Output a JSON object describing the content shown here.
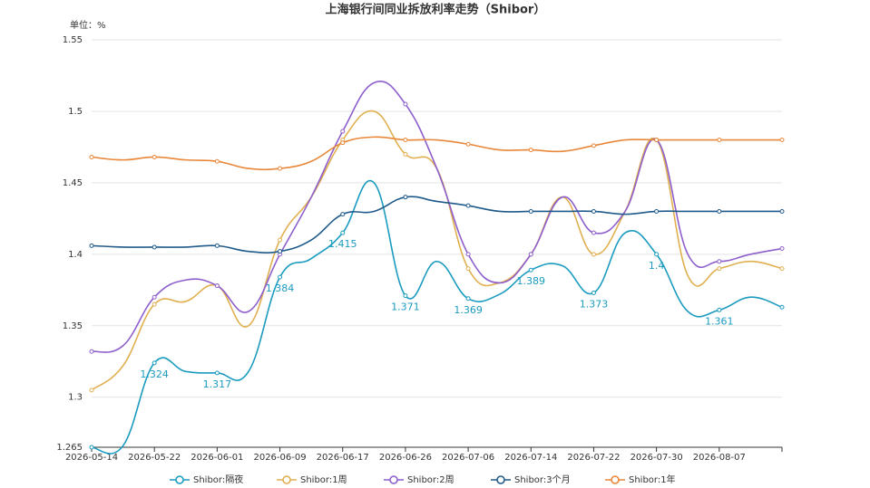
{
  "chart_data": {
    "type": "line",
    "title": "上海银行间同业拆放利率走势（Shibor）",
    "y_label": "单位：%",
    "categories": [
      "2026-05-14",
      null,
      "2026-05-22",
      null,
      "2026-06-01",
      null,
      "2026-06-09",
      null,
      "2026-06-17",
      null,
      "2026-06-26",
      null,
      "2026-07-06",
      null,
      "2026-07-14",
      null,
      "2026-07-22",
      null,
      "2026-07-30",
      null,
      "2026-08-07",
      null,
      null
    ],
    "ylim": [
      1.265,
      1.55
    ],
    "yticks": [
      1.265,
      1.3,
      1.35,
      1.4,
      1.45,
      1.5,
      1.55
    ],
    "grid": true,
    "legend": "bottom",
    "series": [
      {
        "name": "Shibor:隔夜",
        "color": "#1a9bbf",
        "values": [
          1.265,
          1.266,
          1.324,
          1.318,
          1.317,
          1.318,
          1.384,
          1.397,
          1.415,
          1.45,
          1.371,
          1.395,
          1.369,
          1.372,
          1.389,
          1.392,
          1.373,
          1.415,
          1.4,
          1.36,
          1.361,
          1.37,
          1.363
        ],
        "value_labels": [
          null,
          null,
          "1.324",
          null,
          "1.317",
          null,
          "1.384",
          null,
          "1.415",
          null,
          "1.371",
          null,
          "1.369",
          null,
          "1.389",
          null,
          "1.373",
          null,
          "1.4",
          null,
          "1.361",
          null,
          null
        ]
      },
      {
        "name": "Shibor:1周",
        "color": "#e0b050",
        "values": [
          1.305,
          1.322,
          1.365,
          1.367,
          1.378,
          1.35,
          1.41,
          1.44,
          1.48,
          1.5,
          1.47,
          1.46,
          1.39,
          1.38,
          1.4,
          1.44,
          1.4,
          1.43,
          1.48,
          1.385,
          1.39,
          1.395,
          1.39
        ]
      },
      {
        "name": "Shibor:2周",
        "color": "#8e5fcc",
        "values": [
          1.332,
          1.336,
          1.37,
          1.382,
          1.378,
          1.36,
          1.4,
          1.44,
          1.486,
          1.52,
          1.505,
          1.46,
          1.4,
          1.38,
          1.4,
          1.44,
          1.415,
          1.43,
          1.48,
          1.4,
          1.395,
          1.4,
          1.404
        ]
      },
      {
        "name": "Shibor:3个月",
        "color": "#1f5a8a",
        "values": [
          1.406,
          1.405,
          1.405,
          1.405,
          1.406,
          1.402,
          1.402,
          1.41,
          1.428,
          1.43,
          1.44,
          1.437,
          1.434,
          1.43,
          1.43,
          1.43,
          1.43,
          1.428,
          1.43,
          1.43,
          1.43,
          1.43,
          1.43
        ]
      },
      {
        "name": "Shibor:1年",
        "color": "#e8873a",
        "values": [
          1.468,
          1.466,
          1.468,
          1.466,
          1.465,
          1.46,
          1.46,
          1.465,
          1.478,
          1.482,
          1.48,
          1.48,
          1.477,
          1.473,
          1.473,
          1.472,
          1.476,
          1.48,
          1.48,
          1.48,
          1.48,
          1.48,
          1.48
        ]
      }
    ]
  }
}
